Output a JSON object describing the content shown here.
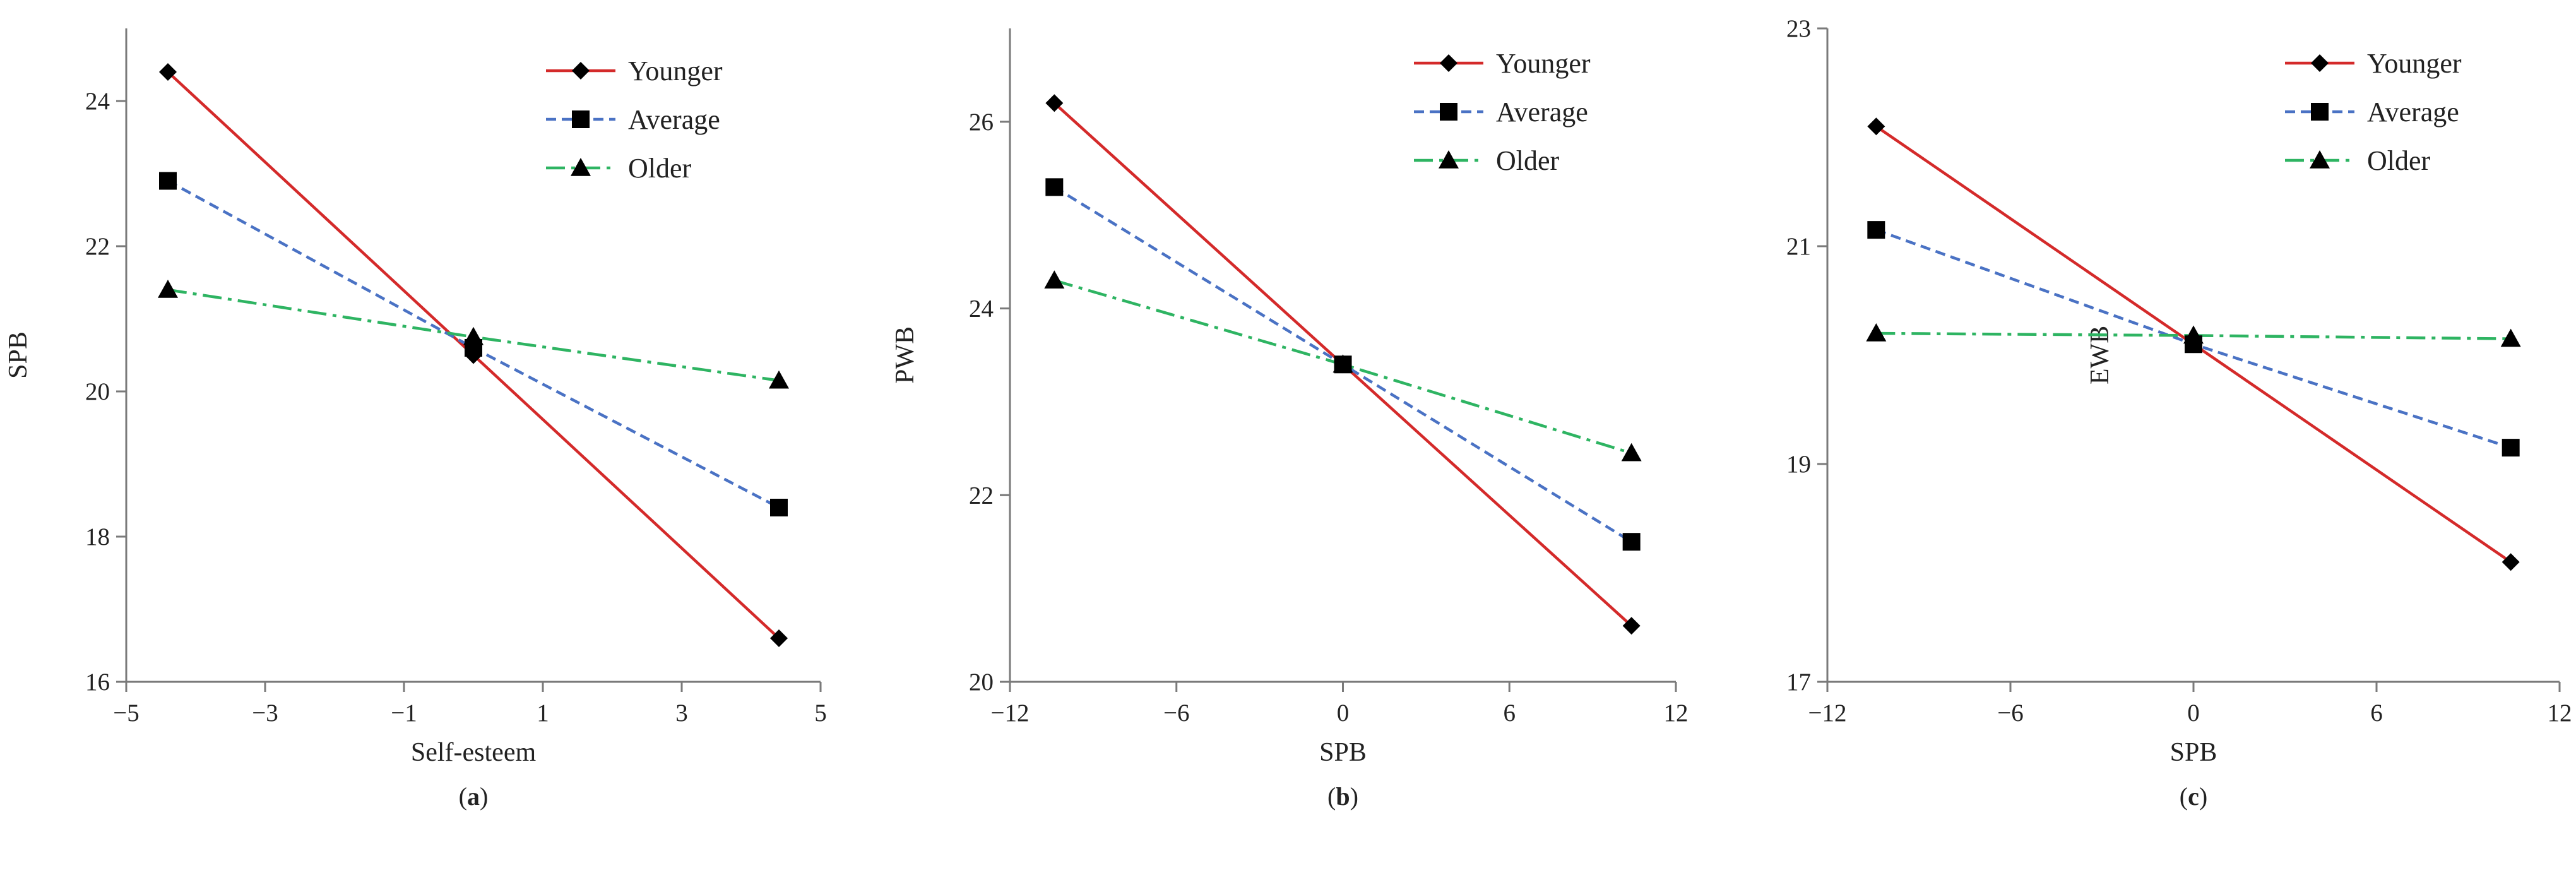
{
  "colors": {
    "Younger": "#d42a2a",
    "Average": "#4a72c4",
    "Older": "#2eb462",
    "axis": "#7a7a7a",
    "marker": "#000000"
  },
  "line_styles": {
    "Younger": "solid",
    "Average": "dashed",
    "Older": "dash-dot"
  },
  "markers": {
    "Younger": "diamond",
    "Average": "square",
    "Older": "triangle"
  },
  "chart_data": [
    {
      "type": "line",
      "panel": "a",
      "panel_label": "a",
      "xlabel": "Self-esteem",
      "ylabel": "SPB",
      "xlim": [
        -5,
        5
      ],
      "ylim": [
        16,
        25
      ],
      "xticks": [
        -5,
        -3,
        -1,
        1,
        3,
        5
      ],
      "yticks": [
        16,
        18,
        20,
        22,
        24
      ],
      "xtick_labels": [
        "−5",
        "−3",
        "−1",
        "1",
        "3",
        "5"
      ],
      "ytick_labels": [
        "16",
        "18",
        "20",
        "22",
        "24"
      ],
      "legend_position": "top-right",
      "grid": false,
      "x": [
        -4.4,
        0,
        4.4
      ],
      "series": [
        {
          "name": "Younger",
          "values": [
            24.4,
            20.5,
            16.6
          ]
        },
        {
          "name": "Average",
          "values": [
            22.9,
            20.6,
            18.4
          ]
        },
        {
          "name": "Older",
          "values": [
            21.4,
            20.75,
            20.15
          ]
        }
      ]
    },
    {
      "type": "line",
      "panel": "b",
      "panel_label": "b",
      "xlabel": "SPB",
      "ylabel": "PWB",
      "xlim": [
        -12,
        12
      ],
      "ylim": [
        20,
        27
      ],
      "xticks": [
        -12,
        -6,
        0,
        6,
        12
      ],
      "yticks": [
        20,
        22,
        24,
        26
      ],
      "xtick_labels": [
        "−12",
        "−6",
        "0",
        "6",
        "12"
      ],
      "ytick_labels": [
        "20",
        "22",
        "24",
        "26"
      ],
      "legend_position": "top-right",
      "grid": false,
      "x": [
        -10.4,
        0,
        10.4
      ],
      "series": [
        {
          "name": "Younger",
          "values": [
            26.2,
            23.4,
            20.6
          ]
        },
        {
          "name": "Average",
          "values": [
            25.3,
            23.4,
            21.5
          ]
        },
        {
          "name": "Older",
          "values": [
            24.3,
            23.4,
            22.45
          ]
        }
      ]
    },
    {
      "type": "line",
      "panel": "c",
      "panel_label": "c",
      "xlabel": "SPB",
      "ylabel": "EWB",
      "xlim": [
        -12,
        12
      ],
      "ylim": [
        17,
        23
      ],
      "xticks": [
        -12,
        -6,
        0,
        6,
        12
      ],
      "yticks": [
        17,
        19,
        21,
        23
      ],
      "xtick_labels": [
        "−12",
        "−6",
        "0",
        "6",
        "12"
      ],
      "ytick_labels": [
        "17",
        "19",
        "21",
        "23"
      ],
      "legend_position": "top-right",
      "grid": false,
      "x": [
        -10.4,
        0,
        10.4
      ],
      "series": [
        {
          "name": "Younger",
          "values": [
            22.1,
            20.1,
            18.1
          ]
        },
        {
          "name": "Average",
          "values": [
            21.15,
            20.1,
            19.15
          ]
        },
        {
          "name": "Older",
          "values": [
            20.2,
            20.18,
            20.15
          ]
        }
      ]
    }
  ]
}
